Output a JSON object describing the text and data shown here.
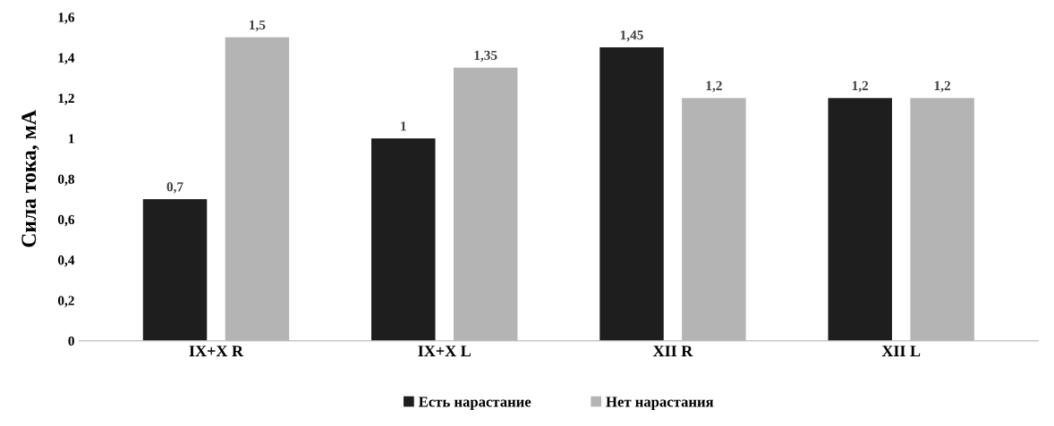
{
  "chart_data": {
    "type": "bar",
    "ylabel": "Сила тока, мА",
    "categories": [
      "IX+X R",
      "IX+X L",
      "XII R",
      "XII L"
    ],
    "series": [
      {
        "name": "Есть нарастание",
        "color": "#1e1e1e",
        "values": [
          0.7,
          1,
          1.45,
          1.2
        ],
        "value_labels": [
          "0,7",
          "1",
          "1,45",
          "1,2"
        ]
      },
      {
        "name": "Нет нарастания",
        "color": "#b4b4b4",
        "values": [
          1.5,
          1.35,
          1.2,
          1.2
        ],
        "value_labels": [
          "1,5",
          "1,35",
          "1,2",
          "1,2"
        ]
      }
    ],
    "ylim": [
      0,
      1.6
    ],
    "yticks": [
      0,
      {
        "value": 0.2,
        "label": "0,2"
      },
      {
        "value": 0.4,
        "label": "0,4"
      },
      {
        "value": 0.6,
        "label": "0,6"
      },
      {
        "value": 0.8,
        "label": "0,8"
      },
      1,
      {
        "value": 1.2,
        "label": "1,2"
      },
      {
        "value": 1.4,
        "label": "1,4"
      },
      {
        "value": 1.6,
        "label": "1,6"
      }
    ],
    "grid": false,
    "legend": "bottom"
  }
}
